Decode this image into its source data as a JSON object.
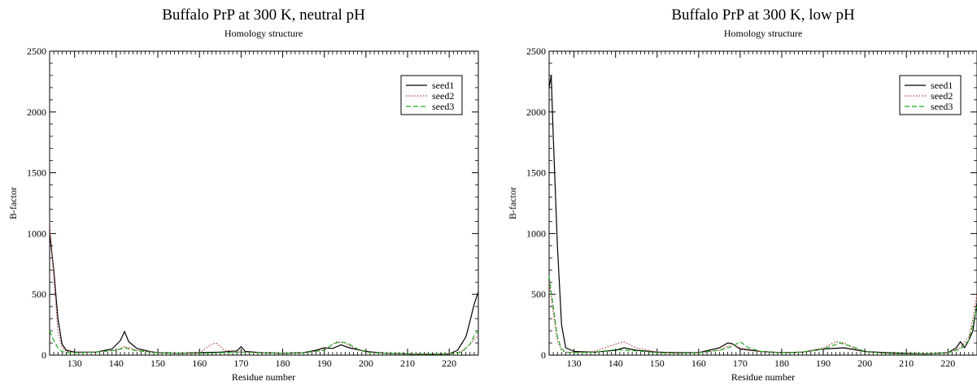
{
  "chart_data": [
    {
      "type": "line",
      "title": "Buffalo PrP at 300 K, neutral pH",
      "subtitle": "Homology structure",
      "xlabel": "Residue number",
      "ylabel": "B-factor",
      "xlim": [
        124,
        227
      ],
      "ylim": [
        0,
        2500
      ],
      "xticks": [
        130,
        140,
        150,
        160,
        170,
        180,
        190,
        200,
        210,
        220
      ],
      "yticks": [
        0,
        500,
        1000,
        1500,
        2000,
        2500
      ],
      "legend_position": "top-right",
      "grid": false,
      "series": [
        {
          "name": "seed1",
          "color": "#000000",
          "dash": "solid",
          "x": [
            124,
            125,
            126,
            127,
            128,
            130,
            135,
            139,
            141,
            142,
            143,
            145,
            148,
            150,
            155,
            160,
            165,
            169,
            170,
            171,
            175,
            180,
            185,
            188,
            190,
            192,
            194,
            196,
            200,
            205,
            210,
            215,
            220,
            222,
            224,
            225,
            226,
            227
          ],
          "y": [
            1000,
            700,
            300,
            90,
            40,
            25,
            25,
            50,
            120,
            195,
            110,
            55,
            30,
            20,
            15,
            20,
            25,
            35,
            70,
            30,
            20,
            15,
            20,
            40,
            60,
            55,
            85,
            60,
            30,
            15,
            10,
            8,
            10,
            40,
            150,
            280,
            420,
            520
          ]
        },
        {
          "name": "seed2",
          "color": "#b04040",
          "dash": "dotted",
          "x": [
            124,
            125,
            126,
            127,
            128,
            130,
            135,
            140,
            142,
            145,
            150,
            155,
            160,
            163,
            164,
            166,
            170,
            175,
            180,
            185,
            190,
            193,
            195,
            197,
            200,
            205,
            210,
            215,
            220,
            223,
            225,
            226,
            227
          ],
          "y": [
            1100,
            650,
            200,
            60,
            30,
            20,
            25,
            40,
            70,
            40,
            20,
            15,
            20,
            90,
            100,
            40,
            25,
            20,
            15,
            20,
            40,
            110,
            100,
            60,
            25,
            15,
            10,
            8,
            10,
            30,
            90,
            130,
            160
          ]
        },
        {
          "name": "seed3",
          "color": "#22aa22",
          "dash": "dashed",
          "x": [
            124,
            125,
            126,
            127,
            128,
            130,
            135,
            140,
            142,
            145,
            150,
            155,
            160,
            165,
            170,
            175,
            180,
            185,
            190,
            192,
            194,
            196,
            198,
            200,
            205,
            210,
            215,
            220,
            223,
            225,
            226,
            227
          ],
          "y": [
            200,
            120,
            60,
            30,
            20,
            20,
            25,
            40,
            60,
            35,
            20,
            15,
            15,
            20,
            25,
            20,
            15,
            20,
            40,
            90,
            110,
            90,
            50,
            25,
            15,
            10,
            8,
            10,
            25,
            90,
            160,
            200
          ]
        }
      ]
    },
    {
      "type": "line",
      "title": "Buffalo PrP at 300 K, low pH",
      "subtitle": "Homology structure",
      "xlabel": "Residue number",
      "ylabel": "B-factor",
      "xlim": [
        124,
        227
      ],
      "ylim": [
        0,
        2500
      ],
      "xticks": [
        130,
        140,
        150,
        160,
        170,
        180,
        190,
        200,
        210,
        220
      ],
      "yticks": [
        0,
        500,
        1000,
        1500,
        2000,
        2500
      ],
      "legend_position": "top-right",
      "grid": false,
      "series": [
        {
          "name": "seed1",
          "color": "#000000",
          "dash": "solid",
          "x": [
            124,
            124.5,
            125,
            126,
            127,
            128,
            130,
            135,
            140,
            142,
            145,
            150,
            155,
            160,
            165,
            167,
            168,
            170,
            175,
            180,
            185,
            190,
            195,
            200,
            205,
            210,
            215,
            220,
            222,
            223,
            224,
            225,
            226,
            227
          ],
          "y": [
            2200,
            2300,
            1800,
            900,
            250,
            60,
            30,
            25,
            40,
            60,
            40,
            25,
            20,
            20,
            60,
            100,
            95,
            50,
            30,
            20,
            25,
            50,
            60,
            30,
            20,
            15,
            10,
            20,
            60,
            110,
            60,
            120,
            200,
            430
          ]
        },
        {
          "name": "seed2",
          "color": "#b04040",
          "dash": "dotted",
          "x": [
            124,
            125,
            126,
            127,
            128,
            130,
            135,
            140,
            142,
            145,
            150,
            155,
            160,
            165,
            168,
            170,
            175,
            180,
            185,
            190,
            193,
            195,
            197,
            200,
            205,
            210,
            215,
            220,
            223,
            225,
            226,
            227
          ],
          "y": [
            600,
            350,
            120,
            40,
            25,
            20,
            30,
            90,
            110,
            60,
            25,
            20,
            20,
            40,
            90,
            60,
            30,
            20,
            25,
            60,
            110,
            100,
            60,
            30,
            15,
            10,
            10,
            20,
            60,
            150,
            300,
            500
          ]
        },
        {
          "name": "seed3",
          "color": "#22aa22",
          "dash": "dashed",
          "x": [
            124,
            125,
            126,
            127,
            128,
            130,
            135,
            140,
            145,
            150,
            155,
            160,
            165,
            168,
            170,
            172,
            175,
            180,
            185,
            190,
            194,
            197,
            200,
            205,
            210,
            215,
            220,
            223,
            225,
            226,
            227
          ],
          "y": [
            650,
            400,
            150,
            50,
            25,
            20,
            25,
            45,
            35,
            20,
            15,
            20,
            40,
            70,
            110,
            60,
            30,
            20,
            25,
            50,
            100,
            70,
            30,
            15,
            10,
            10,
            20,
            50,
            120,
            250,
            400
          ]
        }
      ]
    }
  ]
}
